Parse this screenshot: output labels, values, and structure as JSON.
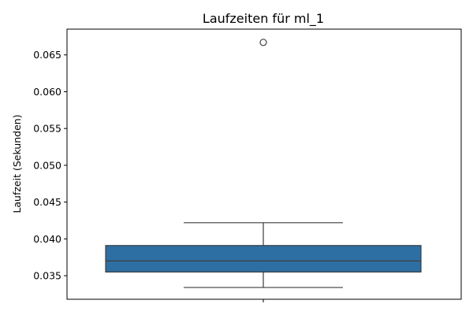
{
  "chart_data": {
    "type": "box",
    "title": "Laufzeiten für ml_1",
    "xlabel": "",
    "ylabel": "Laufzeit (Sekunden)",
    "ylim": [
      0.0318,
      0.0685
    ],
    "yticks": [
      0.035,
      0.04,
      0.045,
      0.05,
      0.055,
      0.06,
      0.065
    ],
    "ytick_labels": [
      "0.035",
      "0.040",
      "0.045",
      "0.050",
      "0.055",
      "0.060",
      "0.065"
    ],
    "series": [
      {
        "whisker_low": 0.0334,
        "q1": 0.0355,
        "median": 0.037,
        "q3": 0.0391,
        "whisker_high": 0.0422,
        "outliers": [
          0.0667
        ],
        "color": "#2e6fa3"
      }
    ],
    "grid": false
  }
}
